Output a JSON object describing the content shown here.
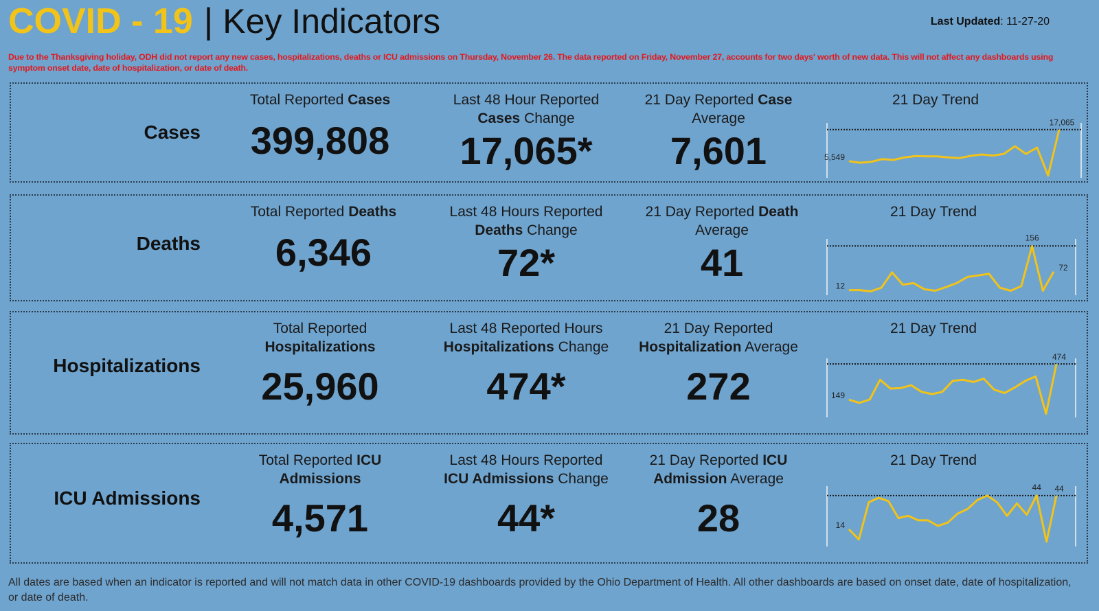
{
  "header": {
    "covid": "COVID - 19",
    "separator": "|",
    "key": "Key Indicators",
    "updated_label": "Last Updated",
    "updated_value": ": 11-27-20"
  },
  "notice": "Due to the Thanksgiving holiday, ODH did not report any new cases, hospitalizations, deaths or ICU admissions on Thursday, November 26. The data reported on Friday, November 27, accounts for two days' worth of new data. This will not affect any dashboards using symptom onset date, date of hospitalization, or date of death.",
  "colors": {
    "background": "#6fa4cf",
    "title_accent": "#f2c318",
    "notice": "#e4181c",
    "trend_line": "#f2c318"
  },
  "panels": [
    {
      "label": "Cases",
      "total": {
        "pre": "Total Reported ",
        "bold": "Cases",
        "post": "",
        "value": "399,808"
      },
      "change": {
        "line1": "Last 48 Hour Reported",
        "bold": "Cases",
        "post": " Change",
        "value": "17,065*"
      },
      "average": {
        "pre": "21 Day Reported ",
        "bold": "Case",
        "line2": "Average",
        "value": "7,601"
      },
      "trend_title": "21 Day Trend"
    },
    {
      "label": "Deaths",
      "total": {
        "pre": "Total Reported ",
        "bold": "Deaths",
        "post": "",
        "value": "6,346"
      },
      "change": {
        "line1": "Last 48 Hours Reported",
        "bold": "Deaths",
        "post": " Change",
        "value": "72*"
      },
      "average": {
        "pre": "21 Day Reported ",
        "bold": "Death",
        "line2": "Average",
        "value": "41"
      },
      "trend_title": "21 Day Trend"
    },
    {
      "label": "Hospitalizations",
      "total": {
        "pre": "Total Reported",
        "bold": "Hospitalizations",
        "post": "",
        "value": "25,960"
      },
      "change": {
        "line1": "Last 48 Reported Hours",
        "bold": "Hospitalizations",
        "post": " Change",
        "value": "474*"
      },
      "average": {
        "pre": "21 Day Reported",
        "bold": "Hospitalization",
        "line2": " Average",
        "value": "272"
      },
      "trend_title": "21 Day Trend"
    },
    {
      "label": "ICU Admissions",
      "total": {
        "pre": "Total Reported ",
        "bold": "ICU",
        "post": "Admissions",
        "value": "4,571"
      },
      "change": {
        "line1": "Last 48 Hours Reported",
        "bold": "ICU Admissions",
        "post": " Change",
        "value": "44*"
      },
      "average": {
        "pre": "21 Day Reported ",
        "bold": "ICU",
        "line2": "Admission",
        "line2post": " Average",
        "value": "28"
      },
      "trend_title": "21 Day Trend"
    }
  ],
  "footer": "All dates are based when an indicator is reported and will not match data in other COVID-19 dashboards provided by the Ohio Department of Health. All other dashboards are based on onset date, date of hospitalization, or date of death.",
  "chart_data": [
    {
      "type": "line",
      "title": "21 Day Trend",
      "series": [
        {
          "values": [
            5549,
            5000,
            5300,
            6300,
            6000,
            6900,
            7400,
            7300,
            7300,
            6900,
            6700,
            7500,
            8000,
            7600,
            8200,
            11000,
            8200,
            10500,
            300,
            17065
          ]
        }
      ],
      "labels": {
        "first": "5,549",
        "last": "17,065"
      },
      "ylim": [
        0,
        18500
      ],
      "ref_value": 17065
    },
    {
      "type": "line",
      "title": "21 Day Trend",
      "series": [
        {
          "values": [
            12,
            12,
            8,
            20,
            70,
            30,
            35,
            15,
            10,
            22,
            35,
            55,
            60,
            65,
            20,
            10,
            25,
            156,
            10,
            72
          ]
        }
      ],
      "labels": {
        "first": "12",
        "peak": "156",
        "last": "72"
      },
      "ylim": [
        0,
        170
      ],
      "ref_value": 156
    },
    {
      "type": "line",
      "title": "21 Day Trend",
      "series": [
        {
          "values": [
            149,
            120,
            150,
            330,
            250,
            255,
            280,
            220,
            200,
            220,
            320,
            330,
            310,
            340,
            240,
            210,
            260,
            320,
            360,
            20,
            474
          ]
        }
      ],
      "labels": {
        "first": "149",
        "last": "474"
      },
      "ylim": [
        0,
        500
      ],
      "ref_value": 474
    },
    {
      "type": "line",
      "title": "21 Day Trend",
      "series": [
        {
          "values": [
            14,
            5,
            38,
            42,
            39,
            24,
            26,
            22,
            22,
            17,
            20,
            28,
            32,
            40,
            44,
            38,
            26,
            37,
            27,
            44,
            3,
            44
          ]
        }
      ],
      "labels": {
        "first": "14",
        "peak": "44",
        "last": "44"
      },
      "ylim": [
        0,
        50
      ],
      "ref_value": 44
    }
  ]
}
